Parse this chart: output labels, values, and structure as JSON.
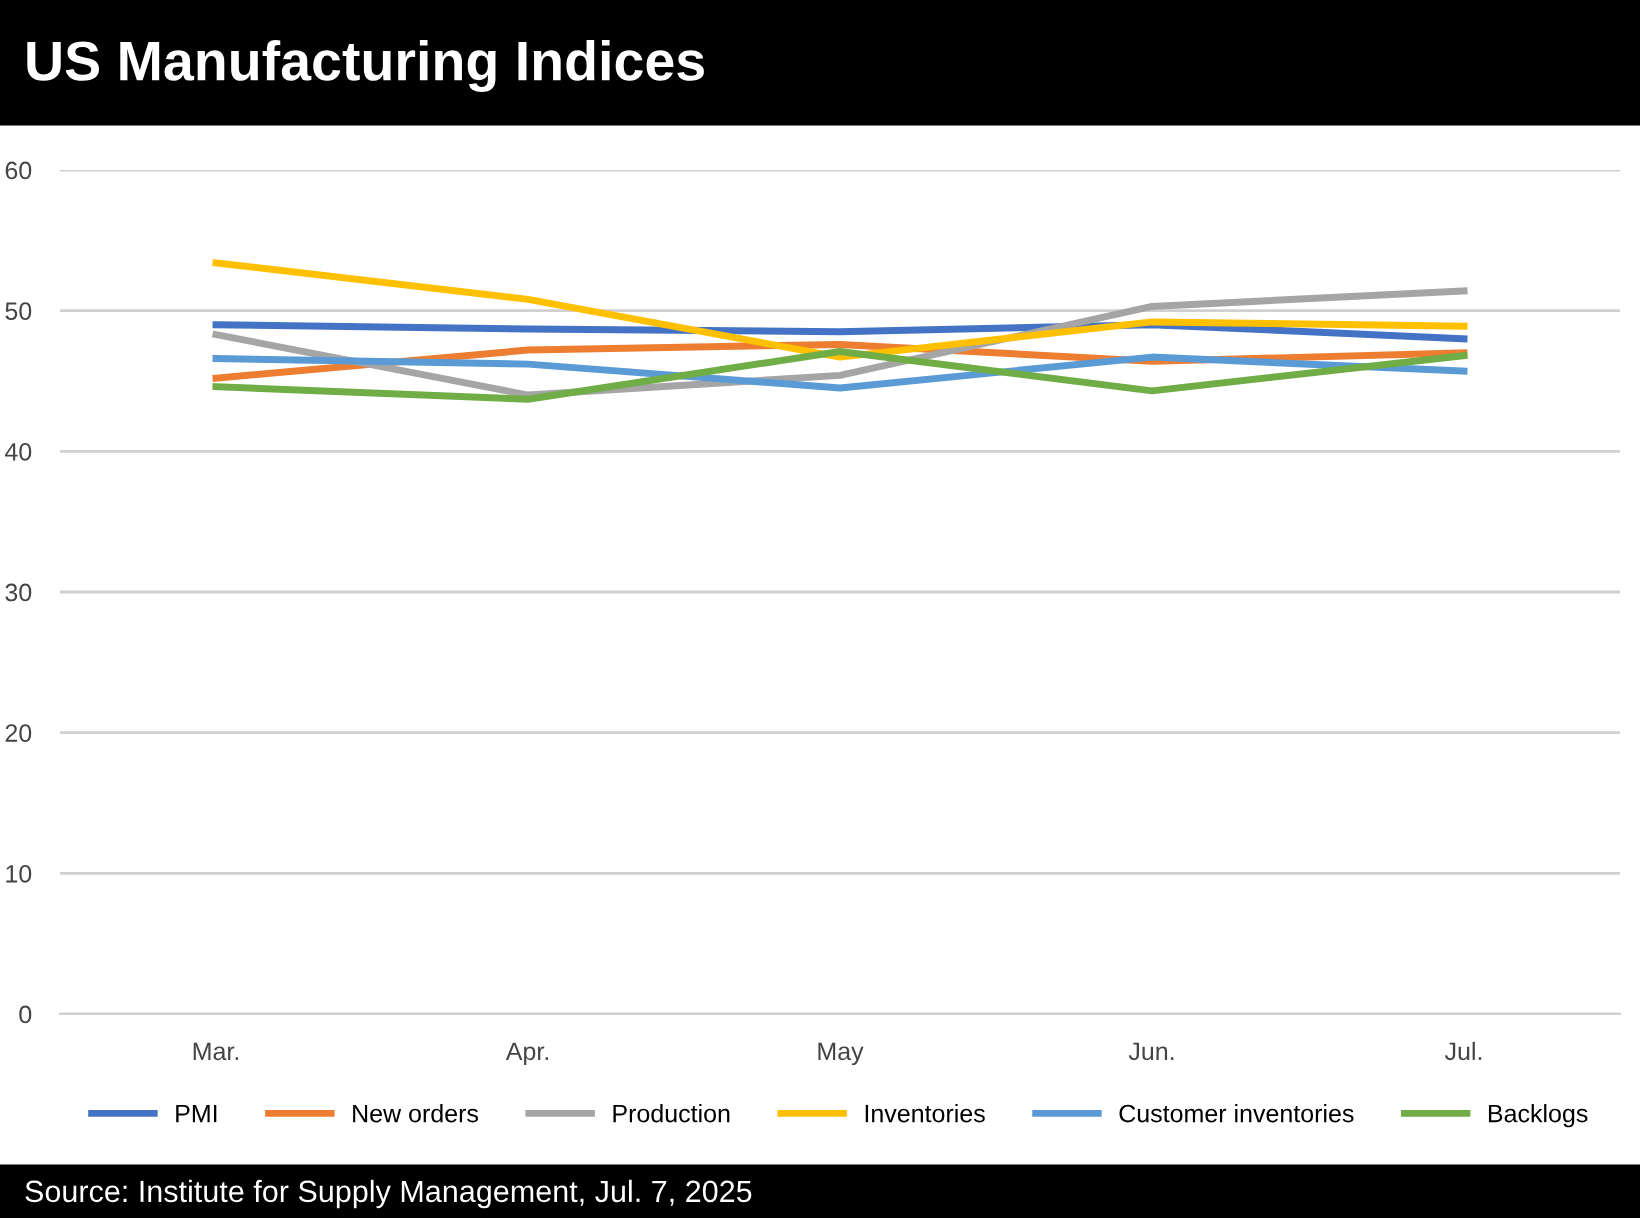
{
  "chart_data": {
    "type": "line",
    "title": "US Manufacturing Indices",
    "categories": [
      "Mar.",
      "Apr.",
      "May",
      "Jun.",
      "Jul."
    ],
    "series": [
      {
        "name": "PMI",
        "color": "#4472c4",
        "values": [
          49.0,
          48.7,
          48.5,
          49.0,
          48.0
        ]
      },
      {
        "name": "New orders",
        "color": "#ed7d31",
        "values": [
          45.2,
          47.2,
          47.6,
          46.4,
          47.0
        ]
      },
      {
        "name": "Production",
        "color": "#a5a5a5",
        "values": [
          48.3,
          44.0,
          45.4,
          50.3,
          51.4
        ]
      },
      {
        "name": "Inventories",
        "color": "#ffc000",
        "values": [
          53.4,
          50.8,
          46.7,
          49.2,
          48.9
        ]
      },
      {
        "name": "Customer inventories",
        "color": "#5b9bd5",
        "values": [
          46.6,
          46.2,
          44.5,
          46.7,
          45.7
        ]
      },
      {
        "name": "Backlogs",
        "color": "#70ad47",
        "values": [
          44.6,
          43.7,
          47.1,
          44.3,
          46.8
        ]
      }
    ],
    "ylim": [
      0,
      60
    ],
    "yticks": [
      0,
      10,
      20,
      30,
      40,
      50,
      60
    ],
    "grid": "y",
    "legend": "bottom",
    "marker": "none",
    "line_style": "solid",
    "annotations": [
      "Source: Institute for Supply Management, Jul. 7, 2025"
    ]
  }
}
